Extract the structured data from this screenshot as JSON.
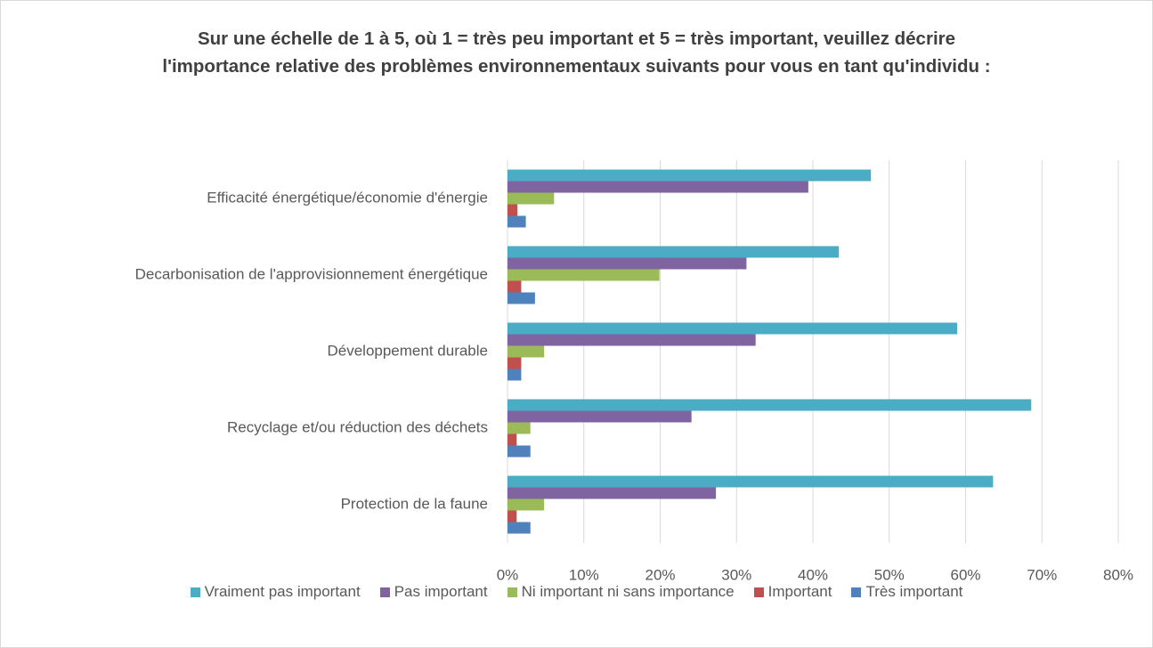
{
  "chart_data": {
    "type": "barh",
    "title": "Sur une échelle de 1 à 5, où 1 = très peu important et 5 = très important, veuillez décrire l'importance relative des problèmes environnementaux suivants pour vous en tant qu'individu :",
    "categories": [
      "Efficacité énergétique/économie d'énergie",
      "Decarbonisation de l'approvisionnement énergétique",
      "Développement durable",
      "Recyclage et/ou réduction des déchets",
      "Protection de la faune"
    ],
    "series": [
      {
        "name": "Vraiment pas important",
        "color": "#4bacc6",
        "values": [
          47.6,
          43.4,
          58.9,
          68.6,
          63.6
        ]
      },
      {
        "name": "Pas important",
        "color": "#8064a2",
        "values": [
          39.4,
          31.3,
          32.5,
          24.1,
          27.3
        ]
      },
      {
        "name": "Ni important ni sans importance",
        "color": "#9bbb59",
        "values": [
          6.1,
          19.9,
          4.8,
          3.0,
          4.8
        ]
      },
      {
        "name": "Important",
        "color": "#c0504d",
        "values": [
          1.3,
          1.8,
          1.8,
          1.2,
          1.2
        ]
      },
      {
        "name": "Très important",
        "color": "#4f81bd",
        "values": [
          2.4,
          3.6,
          1.8,
          3.0,
          3.0
        ]
      }
    ],
    "xlim": [
      0,
      80
    ],
    "xticks": [
      {
        "value": 0,
        "label": "0%"
      },
      {
        "value": 10,
        "label": "10%"
      },
      {
        "value": 20,
        "label": "20%"
      },
      {
        "value": 30,
        "label": "30%"
      },
      {
        "value": 40,
        "label": "40%"
      },
      {
        "value": 50,
        "label": "50%"
      },
      {
        "value": 60,
        "label": "60%"
      },
      {
        "value": 70,
        "label": "70%"
      },
      {
        "value": 80,
        "label": "80%"
      }
    ],
    "grid": true,
    "legend": "bottom"
  }
}
